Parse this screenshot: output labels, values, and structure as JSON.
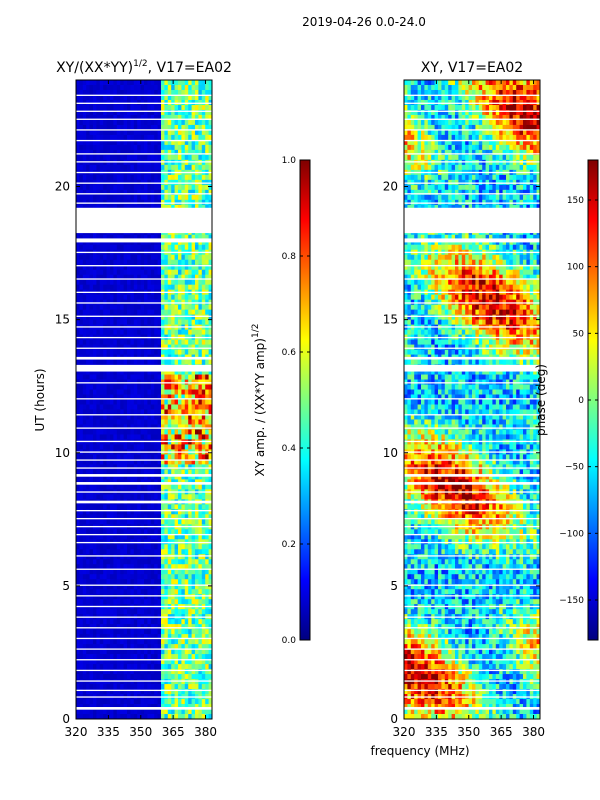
{
  "figure_title": "2019-04-26 0.0-24.0",
  "shared_xlabel": "frequency (MHz)",
  "colors": {
    "jet": [
      "#00007f",
      "#0000ff",
      "#007fff",
      "#00ffff",
      "#7fff7f",
      "#ffff00",
      "#ff7f00",
      "#ff0000",
      "#7f0000"
    ],
    "gap": "#ffffff",
    "axes": "#000000"
  },
  "chart_data": [
    {
      "type": "heatmap",
      "title_main": "XY/(XX*YY)",
      "title_sup": "1/2",
      "title_suffix": ", V17=EA02",
      "xlabel": "",
      "ylabel": "UT (hours)",
      "xlim": [
        320,
        383
      ],
      "ylim": [
        0,
        24
      ],
      "xticks": [
        320,
        335,
        350,
        365,
        380
      ],
      "yticks": [
        0,
        5,
        10,
        15,
        20
      ],
      "xtick_labels": [
        "320",
        "335",
        "350",
        "365",
        "380"
      ],
      "ytick_labels": [
        "0",
        "5",
        "10",
        "15",
        "20"
      ],
      "quantity": "normalized XY amplitude",
      "band_start_mhz": 360,
      "colorbar": {
        "label_main": "XY amp. / (XX*YY amp)",
        "label_sup": "1/2",
        "range": [
          0.0,
          1.0
        ],
        "ticks": [
          0.0,
          0.2,
          0.4,
          0.6,
          0.8,
          1.0
        ],
        "tick_labels": [
          "0.0",
          "0.2",
          "0.4",
          "0.6",
          "0.8",
          "1.0"
        ]
      }
    },
    {
      "type": "heatmap",
      "title_main": "XY, V17=EA02",
      "title_sup": "",
      "title_suffix": "",
      "xlabel": "frequency (MHz)",
      "ylabel": "",
      "xlim": [
        320,
        383
      ],
      "ylim": [
        0,
        24
      ],
      "xticks": [
        320,
        335,
        350,
        365,
        380
      ],
      "yticks": [
        0,
        5,
        10,
        15,
        20
      ],
      "xtick_labels": [
        "320",
        "335",
        "350",
        "365",
        "380"
      ],
      "ytick_labels": [
        "0",
        "5",
        "10",
        "15",
        "20"
      ],
      "quantity": "XY phase",
      "colorbar": {
        "label_main": "phase (deg)",
        "label_sup": "",
        "range": [
          -180,
          180
        ],
        "ticks": [
          -150,
          -100,
          -50,
          0,
          50,
          100,
          150
        ],
        "tick_labels": [
          "−150",
          "−100",
          "−50",
          "0",
          "50",
          "100",
          "150"
        ]
      }
    }
  ],
  "gaps_hours": [
    [
      0.35,
      0.45
    ],
    [
      0.8,
      0.85
    ],
    [
      1.05,
      1.1
    ],
    [
      1.4,
      1.45
    ],
    [
      1.8,
      1.85
    ],
    [
      2.2,
      2.25
    ],
    [
      2.6,
      2.65
    ],
    [
      3.0,
      3.05
    ],
    [
      3.4,
      3.45
    ],
    [
      3.8,
      3.85
    ],
    [
      4.2,
      4.25
    ],
    [
      4.6,
      4.65
    ],
    [
      5.0,
      5.05
    ],
    [
      5.6,
      5.65
    ],
    [
      6.1,
      6.15
    ],
    [
      6.6,
      6.65
    ],
    [
      6.9,
      6.95
    ],
    [
      7.2,
      7.25
    ],
    [
      7.5,
      7.55
    ],
    [
      7.8,
      7.85
    ],
    [
      8.1,
      8.2
    ],
    [
      8.5,
      8.55
    ],
    [
      8.8,
      8.9
    ],
    [
      9.1,
      9.2
    ],
    [
      9.4,
      9.45
    ],
    [
      9.7,
      9.75
    ],
    [
      10.0,
      10.05
    ],
    [
      10.4,
      10.45
    ],
    [
      10.9,
      10.95
    ],
    [
      11.4,
      11.45
    ],
    [
      12.0,
      12.05
    ],
    [
      12.6,
      12.65
    ],
    [
      13.05,
      13.3
    ],
    [
      13.5,
      13.6
    ],
    [
      13.9,
      13.95
    ],
    [
      14.3,
      14.35
    ],
    [
      14.7,
      14.75
    ],
    [
      15.1,
      15.15
    ],
    [
      15.6,
      15.65
    ],
    [
      16.0,
      16.05
    ],
    [
      16.5,
      16.55
    ],
    [
      17.0,
      17.05
    ],
    [
      17.5,
      17.55
    ],
    [
      17.9,
      18.05
    ],
    [
      18.25,
      19.2
    ],
    [
      19.35,
      19.4
    ],
    [
      19.7,
      19.75
    ],
    [
      20.1,
      20.15
    ],
    [
      20.5,
      20.55
    ],
    [
      20.9,
      20.95
    ],
    [
      21.2,
      21.25
    ],
    [
      21.7,
      21.75
    ],
    [
      22.1,
      22.15
    ],
    [
      22.5,
      22.55
    ],
    [
      22.8,
      22.85
    ],
    [
      23.1,
      23.15
    ],
    [
      23.4,
      23.45
    ]
  ]
}
